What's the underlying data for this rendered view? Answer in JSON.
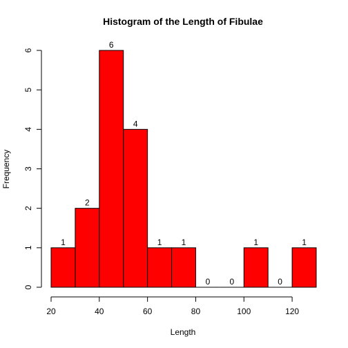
{
  "chart_data": {
    "type": "bar",
    "title": "Histogram of the Length of Fibulae",
    "xlabel": "Length",
    "ylabel": "Frequency",
    "bins": [
      {
        "from": 20,
        "to": 30,
        "count": 1
      },
      {
        "from": 30,
        "to": 40,
        "count": 2
      },
      {
        "from": 40,
        "to": 50,
        "count": 6
      },
      {
        "from": 50,
        "to": 60,
        "count": 4
      },
      {
        "from": 60,
        "to": 70,
        "count": 1
      },
      {
        "from": 70,
        "to": 80,
        "count": 1
      },
      {
        "from": 80,
        "to": 90,
        "count": 0
      },
      {
        "from": 90,
        "to": 100,
        "count": 0
      },
      {
        "from": 100,
        "to": 110,
        "count": 1
      },
      {
        "from": 110,
        "to": 120,
        "count": 0
      },
      {
        "from": 120,
        "to": 130,
        "count": 1
      }
    ],
    "xlim": [
      20,
      130
    ],
    "ylim": [
      0,
      6
    ],
    "x_ticks": [
      20,
      40,
      60,
      80,
      100,
      120
    ],
    "y_ticks": [
      0,
      1,
      2,
      3,
      4,
      5,
      6
    ],
    "bar_color": "#ff0000",
    "bar_border_color": "#000000",
    "grid": false,
    "show_bar_labels": true
  }
}
